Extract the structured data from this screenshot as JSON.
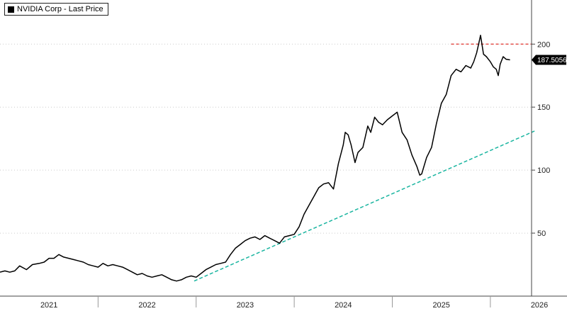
{
  "legend": {
    "label": "NVIDIA Corp - Last Price"
  },
  "last_price_label": "187.5056",
  "colors": {
    "price_line": "#000000",
    "trend_line": "#1ab5a0",
    "resistance_line": "#e0322b",
    "grid": "#cccccc",
    "last_price_tag": "#000000"
  },
  "chart_data": {
    "type": "line",
    "title": "",
    "xlabel": "",
    "ylabel": "",
    "xlim": [
      2021.0,
      2026.42
    ],
    "ylim": [
      0,
      235
    ],
    "y_ticks": [
      50,
      100,
      150,
      200
    ],
    "x_labels": [
      "2021",
      "2022",
      "2023",
      "2024",
      "2025",
      "2026"
    ],
    "grid": "horizontal dotted",
    "legend_position": "top-left",
    "series": [
      {
        "name": "NVIDIA Corp - Last Price",
        "points": [
          [
            2021.0,
            19
          ],
          [
            2021.05,
            20
          ],
          [
            2021.1,
            19
          ],
          [
            2021.15,
            20
          ],
          [
            2021.2,
            24
          ],
          [
            2021.27,
            21
          ],
          [
            2021.33,
            25
          ],
          [
            2021.4,
            26
          ],
          [
            2021.45,
            27
          ],
          [
            2021.5,
            30
          ],
          [
            2021.55,
            30
          ],
          [
            2021.6,
            33
          ],
          [
            2021.65,
            31
          ],
          [
            2021.7,
            30
          ],
          [
            2021.75,
            29
          ],
          [
            2021.8,
            28
          ],
          [
            2021.85,
            27
          ],
          [
            2021.9,
            25
          ],
          [
            2021.95,
            24
          ],
          [
            2022.0,
            23
          ],
          [
            2022.05,
            26
          ],
          [
            2022.1,
            24
          ],
          [
            2022.15,
            25
          ],
          [
            2022.2,
            24
          ],
          [
            2022.25,
            23
          ],
          [
            2022.3,
            21
          ],
          [
            2022.35,
            19
          ],
          [
            2022.4,
            17
          ],
          [
            2022.45,
            18
          ],
          [
            2022.5,
            16
          ],
          [
            2022.55,
            15
          ],
          [
            2022.6,
            16
          ],
          [
            2022.65,
            17
          ],
          [
            2022.7,
            15
          ],
          [
            2022.75,
            13
          ],
          [
            2022.8,
            12
          ],
          [
            2022.85,
            13
          ],
          [
            2022.9,
            15
          ],
          [
            2022.95,
            16
          ],
          [
            2023.0,
            15
          ],
          [
            2023.05,
            18
          ],
          [
            2023.1,
            21
          ],
          [
            2023.15,
            23
          ],
          [
            2023.2,
            25
          ],
          [
            2023.25,
            26
          ],
          [
            2023.3,
            27
          ],
          [
            2023.35,
            33
          ],
          [
            2023.4,
            38
          ],
          [
            2023.45,
            41
          ],
          [
            2023.5,
            44
          ],
          [
            2023.55,
            46
          ],
          [
            2023.6,
            47
          ],
          [
            2023.65,
            45
          ],
          [
            2023.7,
            48
          ],
          [
            2023.75,
            46
          ],
          [
            2023.8,
            44
          ],
          [
            2023.85,
            42
          ],
          [
            2023.9,
            47
          ],
          [
            2023.95,
            48
          ],
          [
            2024.0,
            49
          ],
          [
            2024.05,
            55
          ],
          [
            2024.1,
            65
          ],
          [
            2024.15,
            72
          ],
          [
            2024.2,
            79
          ],
          [
            2024.25,
            86
          ],
          [
            2024.3,
            89
          ],
          [
            2024.35,
            90
          ],
          [
            2024.4,
            85
          ],
          [
            2024.45,
            105
          ],
          [
            2024.5,
            120
          ],
          [
            2024.52,
            130
          ],
          [
            2024.55,
            128
          ],
          [
            2024.58,
            120
          ],
          [
            2024.62,
            106
          ],
          [
            2024.65,
            114
          ],
          [
            2024.7,
            118
          ],
          [
            2024.75,
            135
          ],
          [
            2024.78,
            130
          ],
          [
            2024.82,
            142
          ],
          [
            2024.86,
            138
          ],
          [
            2024.9,
            136
          ],
          [
            2024.95,
            140
          ],
          [
            2025.0,
            143
          ],
          [
            2025.05,
            146
          ],
          [
            2025.1,
            130
          ],
          [
            2025.15,
            124
          ],
          [
            2025.2,
            112
          ],
          [
            2025.25,
            103
          ],
          [
            2025.28,
            96
          ],
          [
            2025.3,
            97
          ],
          [
            2025.35,
            110
          ],
          [
            2025.4,
            118
          ],
          [
            2025.45,
            137
          ],
          [
            2025.5,
            153
          ],
          [
            2025.55,
            160
          ],
          [
            2025.6,
            175
          ],
          [
            2025.65,
            180
          ],
          [
            2025.7,
            178
          ],
          [
            2025.75,
            183
          ],
          [
            2025.8,
            181
          ],
          [
            2025.83,
            186
          ],
          [
            2025.86,
            193
          ],
          [
            2025.88,
            200
          ],
          [
            2025.9,
            207
          ],
          [
            2025.93,
            192
          ],
          [
            2025.96,
            190
          ],
          [
            2026.0,
            186
          ],
          [
            2026.03,
            182
          ],
          [
            2026.06,
            180
          ],
          [
            2026.08,
            175
          ],
          [
            2026.1,
            184
          ],
          [
            2026.13,
            190
          ],
          [
            2026.16,
            188
          ],
          [
            2026.2,
            187.5
          ]
        ]
      }
    ],
    "annotations": [
      {
        "kind": "trendline",
        "from": [
          2022.98,
          12
        ],
        "to": [
          2026.45,
          131
        ]
      },
      {
        "kind": "hline",
        "y": 200,
        "x_from": 2025.6,
        "x_to": 2026.42
      },
      {
        "kind": "last_value",
        "y": 187.5056,
        "label": "187.5056"
      }
    ]
  }
}
